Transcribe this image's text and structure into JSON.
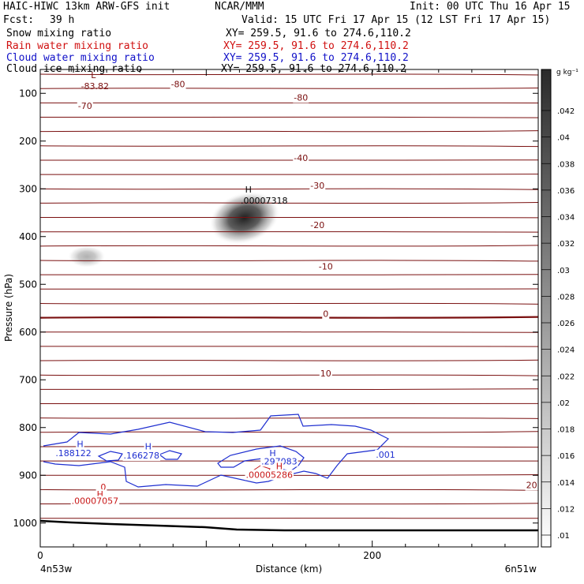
{
  "header": {
    "model": "HAIC-HIWC 13km ARW-GFS init",
    "org": "NCAR/MMM",
    "init": "Init: 00 UTC Thu 16 Apr 15",
    "fcst_label": "Fcst:",
    "fcst_value": "39 h",
    "valid": "Valid: 15 UTC Fri 17 Apr 15 (12 LST Fri 17 Apr 15)"
  },
  "fields": [
    {
      "name": "Snow mixing ratio",
      "xy": "XY= 259.5, 91.6 to 274.6,110.2",
      "color": "#000000"
    },
    {
      "name": "Rain water mixing ratio",
      "xy": "XY= 259.5, 91.6 to 274.6,110.2",
      "color": "#d01010"
    },
    {
      "name": "Cloud water mixing ratio",
      "xy": "XY= 259.5, 91.6 to 274.6,110.2",
      "color": "#1010c8"
    },
    {
      "name": "Cloud ice mixing ratio",
      "xy": "XY= 259.5, 91.6 to 274.6,110.2",
      "color": "#000000"
    }
  ],
  "chart_data": {
    "type": "heatmap",
    "ylabel": "Pressure (hPa)",
    "xlabel": "Distance (km)",
    "y_ticks": [
      100,
      200,
      300,
      400,
      500,
      600,
      700,
      800,
      900,
      1000
    ],
    "x_ticks": [
      0,
      200
    ],
    "xlim": [
      0,
      300
    ],
    "ylim": [
      1050,
      50
    ],
    "x_end_labels": {
      "left": "4n53w",
      "right": "6n51w"
    },
    "colorbar": {
      "unit": "g kg⁻¹",
      "ticks": [
        ".01",
        ".012",
        ".014",
        ".016",
        ".018",
        ".02",
        ".022",
        ".024",
        ".026",
        ".028",
        ".03",
        ".032",
        ".034",
        ".036",
        ".038",
        ".04",
        ".042"
      ]
    },
    "snow_blobs": [
      {
        "x": 123,
        "p": 361,
        "intensity": 1.0,
        "max_label": "H",
        "value": ".00007318"
      },
      {
        "x": 28,
        "p": 442,
        "intensity": 0.35
      }
    ],
    "temperature_labels": [
      {
        "text": "-80",
        "x": 83,
        "p": 82
      },
      {
        "text": "-80",
        "x": 157,
        "p": 110
      },
      {
        "text": "-70",
        "x": 27,
        "p": 128
      },
      {
        "text": "-40",
        "x": 157,
        "p": 237
      },
      {
        "text": "-30",
        "x": 167,
        "p": 295
      },
      {
        "text": "-20",
        "x": 167,
        "p": 377
      },
      {
        "text": "-10",
        "x": 172,
        "p": 464
      },
      {
        "text": "0",
        "x": 172,
        "p": 563
      },
      {
        "text": "10",
        "x": 172,
        "p": 688
      },
      {
        "text": "20",
        "x": 296,
        "p": 922
      }
    ],
    "temperature_min": {
      "label": "L",
      "value": "-83.82",
      "x": 32,
      "p": 68
    },
    "cloud_water_labels": [
      {
        "text": "H",
        "x": 24,
        "p": 836
      },
      {
        "text": ".188122",
        "x": 20,
        "p": 855
      },
      {
        "text": "H",
        "x": 65,
        "p": 841
      },
      {
        "text": ".166278",
        "x": 61,
        "p": 860
      },
      {
        "text": "H",
        "x": 140,
        "p": 855
      },
      {
        "text": ".297083",
        "x": 144,
        "p": 872
      },
      {
        "text": ".001",
        "x": 208,
        "p": 858
      }
    ],
    "rain_labels": [
      {
        "text": "H",
        "x": 144,
        "p": 882
      },
      {
        "text": ".00005286",
        "x": 138,
        "p": 900
      },
      {
        "text": "0",
        "x": 38,
        "p": 926
      },
      {
        "text": "H",
        "x": 36,
        "p": 941
      },
      {
        "text": ".00007057",
        "x": 33,
        "p": 955
      }
    ]
  }
}
